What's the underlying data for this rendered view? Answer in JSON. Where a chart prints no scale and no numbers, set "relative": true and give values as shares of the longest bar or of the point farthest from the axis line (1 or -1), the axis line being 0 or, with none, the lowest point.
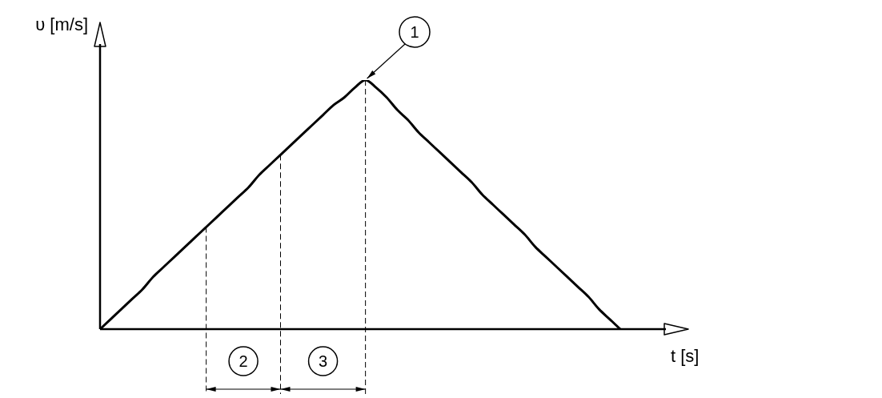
{
  "chart_data": {
    "type": "line",
    "relative": true,
    "xlabel": "t [s]",
    "ylabel": "υ [m/s]",
    "annotations": [
      "1",
      "2",
      "3"
    ],
    "marker": "none",
    "line_style": "solid",
    "legend": false,
    "categories": [
      null,
      null,
      null,
      null,
      null,
      null,
      null,
      null,
      null,
      null,
      null,
      null,
      null,
      null,
      null,
      null,
      null,
      null,
      null,
      null,
      null,
      null,
      null,
      null,
      null,
      null,
      null,
      null,
      null,
      null,
      null,
      null,
      null,
      null,
      null,
      null,
      null,
      null,
      null,
      null,
      null,
      null,
      null,
      null,
      null,
      null,
      null,
      null,
      null,
      null
    ],
    "series": [
      {
        "color": "#000000",
        "values": [
          0,
          0.04,
          0.08,
          0.12,
          0.16,
          0.21,
          0.25,
          0.29,
          0.33,
          0.37,
          0.41,
          0.45,
          0.49,
          0.53,
          0.57,
          0.62,
          0.66,
          0.7,
          0.74,
          0.78,
          0.82,
          0.86,
          0.9,
          0.93,
          0.97,
          1,
          0.97,
          0.93,
          0.88,
          0.84,
          0.79,
          0.75,
          0.71,
          0.67,
          0.63,
          0.59,
          0.54,
          0.5,
          0.46,
          0.42,
          0.38,
          0.33,
          0.29,
          0.25,
          0.21,
          0.17,
          0.13,
          0.08,
          0.04,
          0
        ]
      }
    ]
  }
}
